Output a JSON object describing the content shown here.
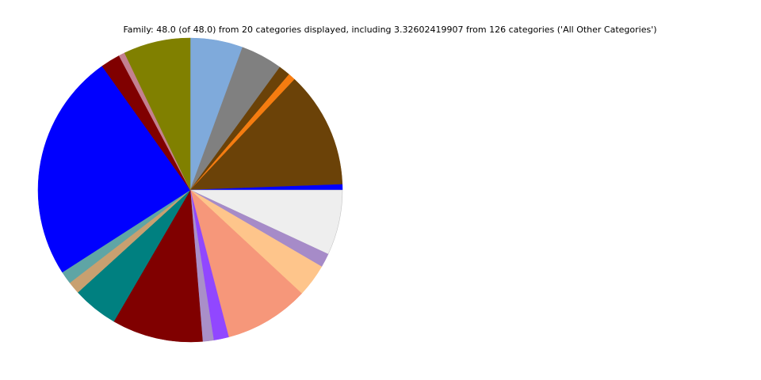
{
  "chart_data": {
    "type": "pie",
    "title": "Family: 48.0 (of 48.0) from 20 categories displayed, including 3.32602419907 from 126 categories ('All Other Categories')",
    "values": [
      2.68,
      2.13,
      0.59,
      0.37,
      5.95,
      0.28,
      3.33,
      0.71,
      1.68,
      4.33,
      0.77,
      0.56,
      4.64,
      2.33,
      0.63,
      0.65,
      11.65,
      1.0,
      0.31,
      3.41
    ],
    "colors": [
      "#7faadb",
      "#808080",
      "#6b4208",
      "#f57c10",
      "#6b4208",
      "#0000ff",
      "#eeeeee",
      "#a68bc8",
      "#fec58b",
      "#f6977a",
      "#9147ff",
      "#a98fc8",
      "#800000",
      "#008080",
      "#c8a070",
      "#5fa5a5",
      "#0000ff",
      "#800000",
      "#c48090",
      "#808000"
    ]
  }
}
